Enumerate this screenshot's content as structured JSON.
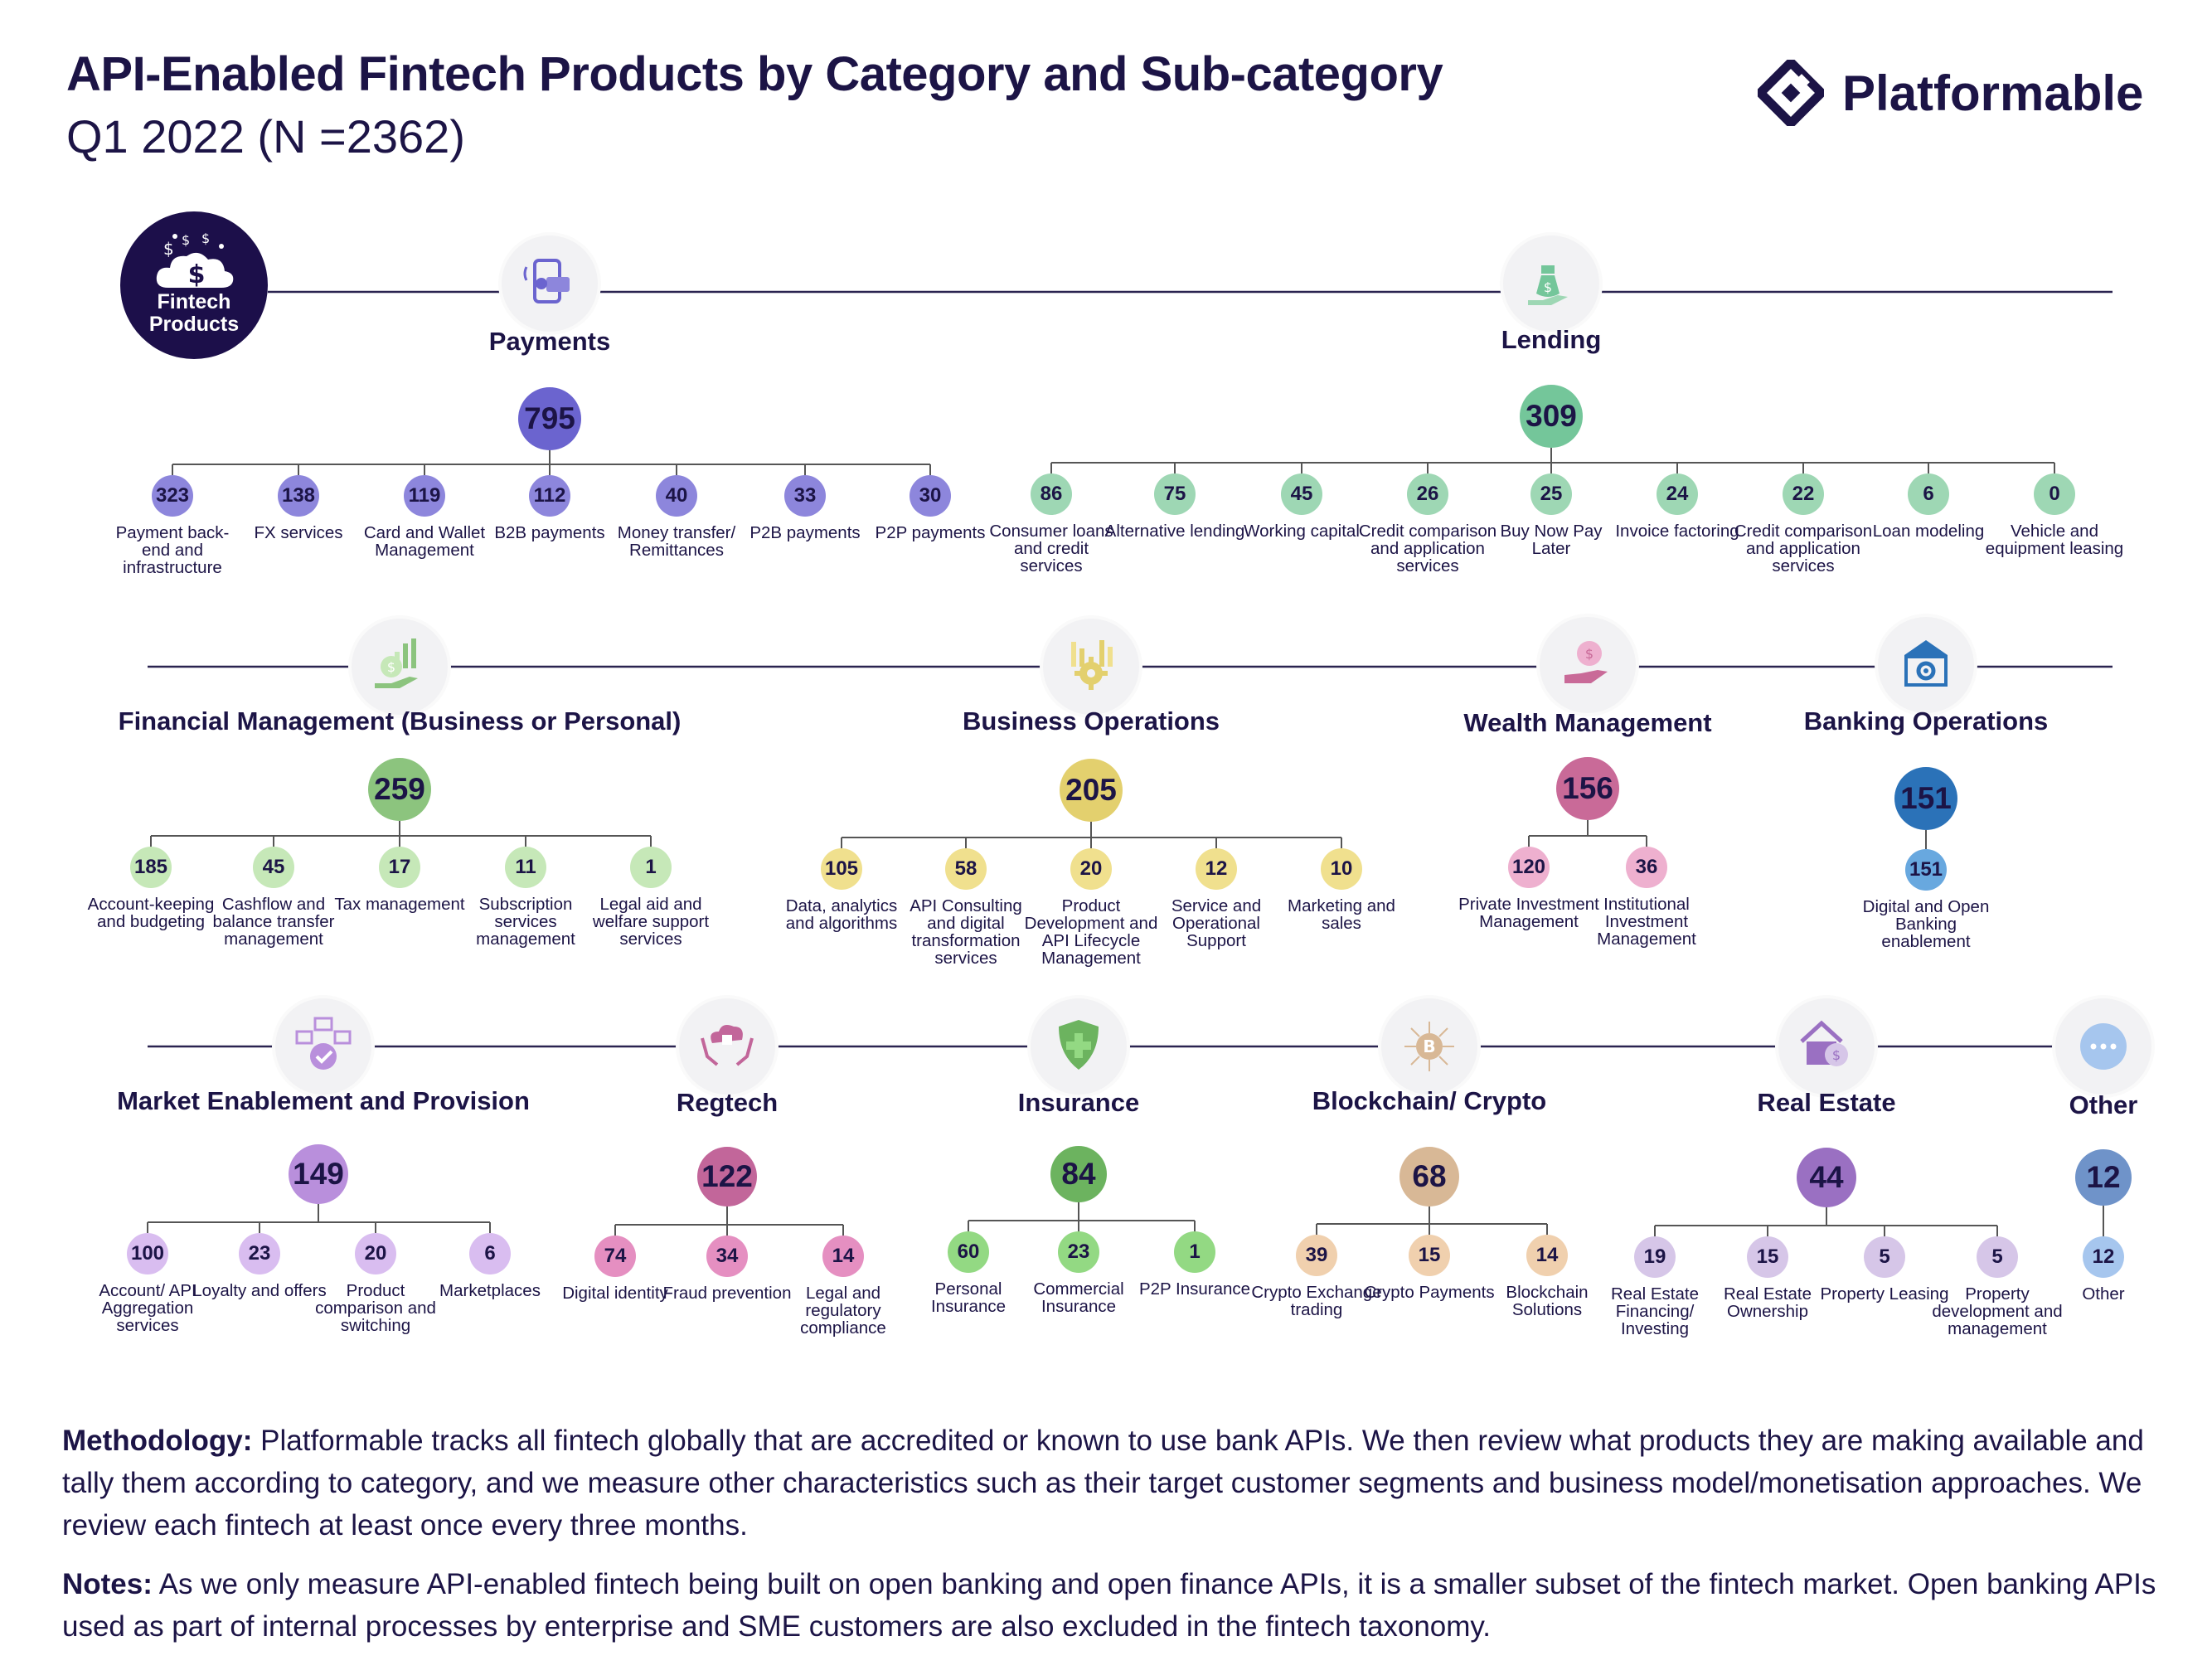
{
  "title": "API-Enabled Fintech Products by Category and Sub-category",
  "subtitle": "Q1 2022 (N =2362)",
  "brand": {
    "name": "Platformable",
    "logo_icon": "diamond-logo-icon"
  },
  "root": {
    "label_line1": "Fintech",
    "label_line2": "Products",
    "icon": "money-cloud-icon"
  },
  "colors": {
    "payments": "#6b64cf",
    "payments_sub": "#8d86dc",
    "lending": "#74c69a",
    "lending_sub": "#9ed7b4",
    "financial": "#8cc47e",
    "financial_sub": "#c6e8b8",
    "business": "#e3d06e",
    "business_sub": "#f0e08e",
    "wealth": "#c96a98",
    "wealth_sub": "#eeb0cf",
    "banking": "#2b72b8",
    "banking_sub": "#68a8df",
    "market": "#b98fdc",
    "market_sub": "#d9bdf0",
    "regtech": "#c2669a",
    "regtech_sub": "#e58fc1",
    "insurance": "#6cb35f",
    "insurance_sub": "#93d983",
    "blockchain": "#d8b896",
    "blockchain_sub": "#f0d0ae",
    "realestate": "#9a70c2",
    "realestate_sub": "#d6c6e8",
    "other": "#6f93c9",
    "other_sub": "#a6c6ee"
  },
  "categories": [
    {
      "key": "payments",
      "name": "Payments",
      "value": "795",
      "icon": "phone-payment-icon",
      "subs": [
        {
          "value": "323",
          "label": "Payment back-end and infrastructure"
        },
        {
          "value": "138",
          "label": "FX services"
        },
        {
          "value": "119",
          "label": "Card and Wallet Management"
        },
        {
          "value": "112",
          "label": "B2B payments"
        },
        {
          "value": "40",
          "label": "Money transfer/ Remittances"
        },
        {
          "value": "33",
          "label": "P2B payments"
        },
        {
          "value": "30",
          "label": "P2P payments"
        }
      ]
    },
    {
      "key": "lending",
      "name": "Lending",
      "value": "309",
      "icon": "money-bag-hand-icon",
      "subs": [
        {
          "value": "86",
          "label": "Consumer loans and credit services"
        },
        {
          "value": "75",
          "label": "Alternative lending"
        },
        {
          "value": "45",
          "label": "Working capital"
        },
        {
          "value": "26",
          "label": "Credit comparison and application services"
        },
        {
          "value": "25",
          "label": "Buy Now Pay Later"
        },
        {
          "value": "24",
          "label": "Invoice factoring"
        },
        {
          "value": "22",
          "label": "Credit comparison and application services"
        },
        {
          "value": "6",
          "label": "Loan modeling"
        },
        {
          "value": "0",
          "label": "Vehicle and equipment leasing"
        }
      ]
    },
    {
      "key": "financial",
      "name": "Financial Management (Business or Personal)",
      "value": "259",
      "icon": "coin-growth-hand-icon",
      "subs": [
        {
          "value": "185",
          "label": "Account-keeping and budgeting"
        },
        {
          "value": "45",
          "label": "Cashflow and balance transfer management"
        },
        {
          "value": "17",
          "label": "Tax management"
        },
        {
          "value": "11",
          "label": "Subscription services management"
        },
        {
          "value": "1",
          "label": "Legal aid and welfare support services"
        }
      ]
    },
    {
      "key": "business",
      "name": "Business Operations",
      "value": "205",
      "icon": "gear-chart-icon",
      "subs": [
        {
          "value": "105",
          "label": "Data, analytics and algorithms"
        },
        {
          "value": "58",
          "label": "API Consulting and digital transformation services"
        },
        {
          "value": "20",
          "label": "Product Development and API Lifecycle Management"
        },
        {
          "value": "12",
          "label": "Service and Operational Support"
        },
        {
          "value": "10",
          "label": "Marketing and sales"
        }
      ]
    },
    {
      "key": "wealth",
      "name": "Wealth Management",
      "value": "156",
      "icon": "coin-hand-icon",
      "subs": [
        {
          "value": "120",
          "label": "Private Investment Management"
        },
        {
          "value": "36",
          "label": "Institutional Investment Management"
        }
      ]
    },
    {
      "key": "banking",
      "name": "Banking Operations",
      "value": "151",
      "icon": "bank-gear-icon",
      "subs": [
        {
          "value": "151",
          "label": "Digital and Open Banking enablement"
        }
      ]
    },
    {
      "key": "market",
      "name": "Market Enablement and Provision",
      "value": "149",
      "icon": "marketplace-check-icon",
      "subs": [
        {
          "value": "100",
          "label": "Account/ API Aggregation services"
        },
        {
          "value": "23",
          "label": "Loyalty and offers"
        },
        {
          "value": "20",
          "label": "Product comparison and switching"
        },
        {
          "value": "6",
          "label": "Marketplaces"
        }
      ]
    },
    {
      "key": "regtech",
      "name": "Regtech",
      "value": "122",
      "icon": "cloud-lock-hands-icon",
      "subs": [
        {
          "value": "74",
          "label": "Digital identity"
        },
        {
          "value": "34",
          "label": "Fraud prevention"
        },
        {
          "value": "14",
          "label": "Legal and regulatory compliance"
        }
      ]
    },
    {
      "key": "insurance",
      "name": "Insurance",
      "value": "84",
      "icon": "shield-plus-icon",
      "subs": [
        {
          "value": "60",
          "label": "Personal Insurance"
        },
        {
          "value": "23",
          "label": "Commercial Insurance"
        },
        {
          "value": "1",
          "label": "P2P Insurance"
        }
      ]
    },
    {
      "key": "blockchain",
      "name": "Blockchain/ Crypto",
      "value": "68",
      "icon": "bitcoin-circuit-icon",
      "subs": [
        {
          "value": "39",
          "label": "Crypto Exchange trading"
        },
        {
          "value": "15",
          "label": "Crypto Payments"
        },
        {
          "value": "14",
          "label": "Blockchain Solutions"
        }
      ]
    },
    {
      "key": "realestate",
      "name": "Real Estate",
      "value": "44",
      "icon": "house-coin-icon",
      "subs": [
        {
          "value": "19",
          "label": "Real Estate Financing/ Investing"
        },
        {
          "value": "15",
          "label": "Real Estate Ownership"
        },
        {
          "value": "5",
          "label": "Property Leasing"
        },
        {
          "value": "5",
          "label": "Property development and management"
        }
      ]
    },
    {
      "key": "other",
      "name": "Other",
      "value": "12",
      "icon": "ellipsis-icon",
      "subs": [
        {
          "value": "12",
          "label": "Other"
        }
      ]
    }
  ],
  "footer": {
    "methodology_label": "Methodology:",
    "methodology_text": " Platformable tracks all fintech globally that are accredited or known to use bank APIs. We then review what products they are making available and tally them according to category, and we measure other characteristics such as their target customer segments and business model/monetisation approaches. We review each fintech at least once every three months.",
    "notes_label": "Notes:",
    "notes_text": " As we only measure API-enabled fintech being built on open banking and open finance APIs, it is a smaller subset of the fintech market. Open banking APIs used as part of internal processes by enterprise and SME customers are also excluded in the fintech taxonomy."
  }
}
